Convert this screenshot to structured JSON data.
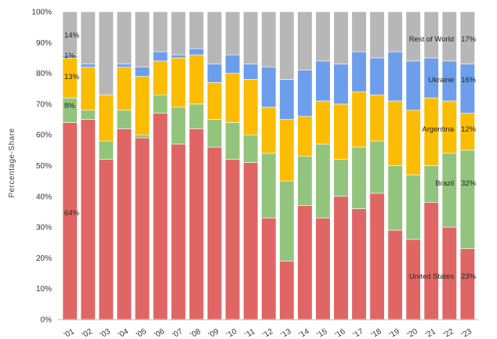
{
  "chart_data": {
    "type": "bar",
    "stacked": true,
    "title": "",
    "xlabel": "",
    "ylabel": "Percentage-Share",
    "ylim": [
      0,
      100
    ],
    "y_ticks": [
      "0%",
      "10%",
      "20%",
      "30%",
      "40%",
      "50%",
      "60%",
      "70%",
      "80%",
      "90%",
      "100%"
    ],
    "grid": false,
    "legend": "none",
    "categories": [
      "'01",
      "'02",
      "'03",
      "'04",
      "'05",
      "'06",
      "'07",
      "'08",
      "'09",
      "'10",
      "'11",
      "'12",
      "'13",
      "'14",
      "'15",
      "'16",
      "'17",
      "'18",
      "'19",
      "'20",
      "'21",
      "'22",
      "'23"
    ],
    "series": [
      {
        "name": "United States",
        "color": "#e06666",
        "values": [
          64,
          65,
          52,
          62,
          59,
          67,
          57,
          62,
          56,
          52,
          51,
          33,
          19,
          37,
          33,
          40,
          36,
          41,
          29,
          26,
          38,
          30,
          23
        ]
      },
      {
        "name": "Brazil",
        "color": "#93c47d",
        "values": [
          8,
          3,
          6,
          6,
          1,
          6,
          12,
          8,
          9,
          12,
          9,
          21,
          26,
          16,
          24,
          12,
          20,
          17,
          21,
          21,
          12,
          24,
          32
        ]
      },
      {
        "name": "Argentina",
        "color": "#fbbc04",
        "values": [
          13,
          14,
          15,
          14,
          19,
          11,
          16,
          16,
          12,
          16,
          18,
          15,
          20,
          13,
          14,
          18,
          18,
          15,
          21,
          21,
          22,
          17,
          12
        ]
      },
      {
        "name": "Ukraine",
        "color": "#6d9eeb",
        "values": [
          1,
          1,
          0,
          1,
          3,
          3,
          1,
          2,
          6,
          6,
          5,
          13,
          13,
          15,
          13,
          13,
          13,
          12,
          16,
          16,
          13,
          13,
          16
        ]
      },
      {
        "name": "Rest of World",
        "color": "#b7b7b7",
        "values": [
          14,
          17,
          27,
          17,
          18,
          13,
          14,
          12,
          17,
          14,
          17,
          18,
          22,
          19,
          16,
          17,
          13,
          15,
          13,
          16,
          15,
          16,
          17
        ]
      }
    ],
    "annotations": {
      "left": [
        {
          "text": "14%",
          "series": "Rest of World"
        },
        {
          "text": "1%",
          "series": "Ukraine"
        },
        {
          "text": "13%",
          "series": "Argentina"
        },
        {
          "text": "8%",
          "series": "Brazil"
        },
        {
          "text": "64%",
          "series": "United States"
        }
      ],
      "right": [
        {
          "label": "Rest of World",
          "value": "17%"
        },
        {
          "label": "Ukraine",
          "value": "16%"
        },
        {
          "label": "Argentina",
          "value": "12%"
        },
        {
          "label": "Brazil",
          "value": "32%"
        },
        {
          "label": "United States",
          "value": "23%"
        }
      ]
    }
  }
}
